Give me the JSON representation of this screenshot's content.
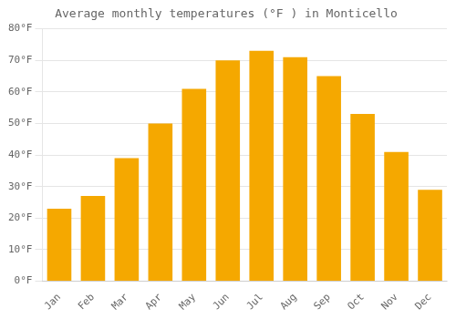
{
  "chart_data": {
    "type": "bar",
    "title": "Average monthly temperatures (°F ) in Monticello",
    "categories": [
      "Jan",
      "Feb",
      "Mar",
      "Apr",
      "May",
      "Jun",
      "Jul",
      "Aug",
      "Sep",
      "Oct",
      "Nov",
      "Dec"
    ],
    "values": [
      23,
      27,
      39,
      50,
      61,
      70,
      73,
      71,
      65,
      53,
      41,
      29
    ],
    "color": "#F5A800",
    "ylim": [
      0,
      80
    ],
    "yticks": [
      {
        "value": 0,
        "label": "0°F"
      },
      {
        "value": 10,
        "label": "10°F"
      },
      {
        "value": 20,
        "label": "20°F"
      },
      {
        "value": 30,
        "label": "30°F"
      },
      {
        "value": 40,
        "label": "40°F"
      },
      {
        "value": 50,
        "label": "50°F"
      },
      {
        "value": 60,
        "label": "60°F"
      },
      {
        "value": 70,
        "label": "70°F"
      },
      {
        "value": 80,
        "label": "80°F"
      }
    ],
    "grid": true
  }
}
